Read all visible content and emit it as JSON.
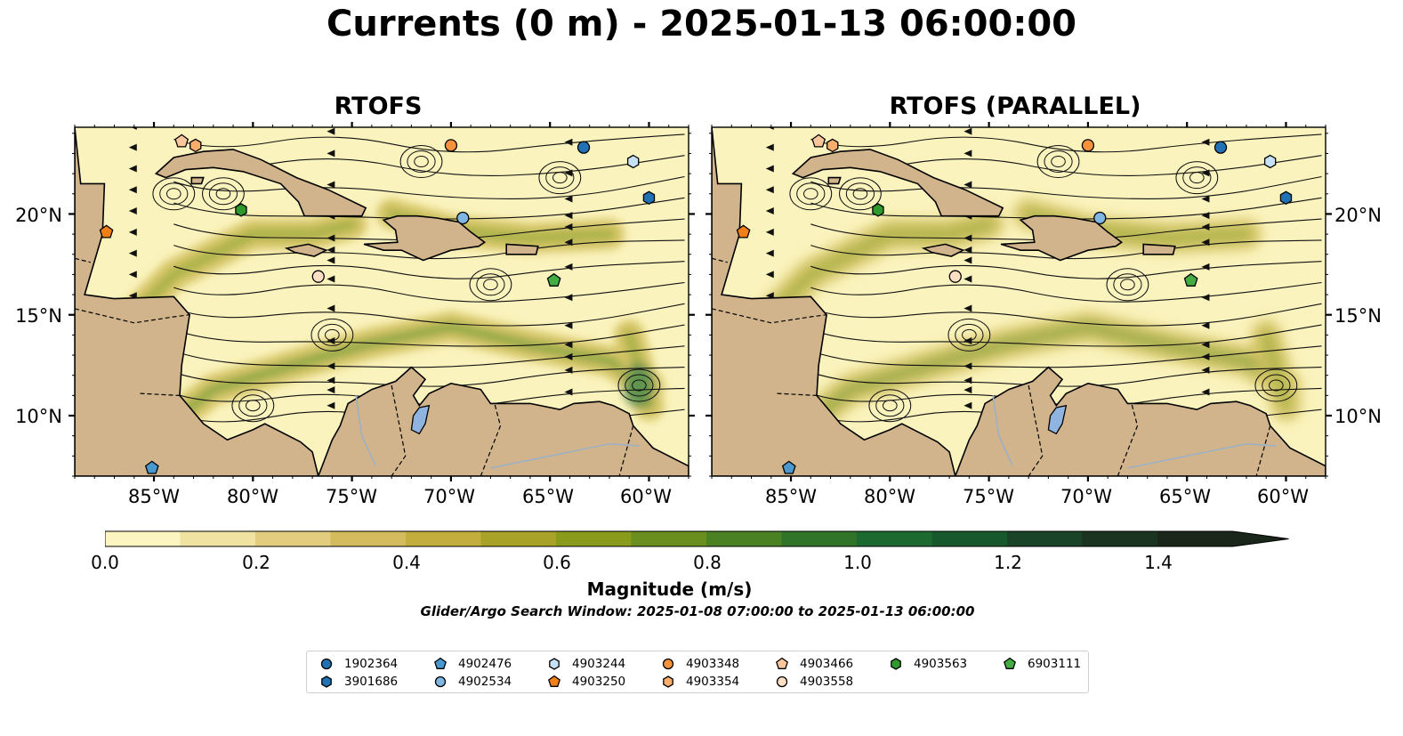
{
  "title": "Currents (0 m) - 2025-01-13 06:00:00",
  "panels": [
    {
      "title": "RTOFS"
    },
    {
      "title": "RTOFS (PARALLEL)"
    }
  ],
  "map": {
    "lon_range": [
      -89,
      -58
    ],
    "lat_range": [
      7,
      24.3
    ],
    "lat_ticks": [
      "20°N",
      "15°N",
      "10°N"
    ],
    "lon_ticks": [
      "85°W",
      "80°W",
      "75°W",
      "70°W",
      "65°W",
      "60°W"
    ],
    "land_color": "#d2b48c",
    "lake_color": "#8fb4e0",
    "ocean_low_color": "#fbf3bd"
  },
  "colorbar": {
    "label": "Magnitude (m/s)",
    "ticks": [
      "0.0",
      "0.2",
      "0.4",
      "0.6",
      "0.8",
      "1.0",
      "1.2",
      "1.4"
    ],
    "range": [
      0,
      1.5
    ],
    "colors": [
      "#fcf5c1",
      "#f0e2a0",
      "#e2cd7f",
      "#d4bb5e",
      "#c3ad3c",
      "#a8a228",
      "#8a9b1c",
      "#6a8f1f",
      "#4a8223",
      "#2f7429",
      "#1c6a30",
      "#17582d",
      "#1a4428",
      "#1b3422",
      "#1b261b"
    ]
  },
  "search_window": "Glider/Argo Search Window: 2025-01-08 07:00:00 to 2025-01-13 06:00:00",
  "floats": [
    {
      "id": "1902364",
      "marker": "circle",
      "color": "#2171b5"
    },
    {
      "id": "3901686",
      "marker": "hexagon",
      "color": "#2171b5"
    },
    {
      "id": "4902476",
      "marker": "pentagon",
      "color": "#4a98d0"
    },
    {
      "id": "4902534",
      "marker": "circle",
      "color": "#7fb6e2"
    },
    {
      "id": "4903244",
      "marker": "hexagon",
      "color": "#c6e0f5"
    },
    {
      "id": "4903250",
      "marker": "pentagon",
      "color": "#f07f16"
    },
    {
      "id": "4903348",
      "marker": "circle",
      "color": "#f7923c"
    },
    {
      "id": "4903354",
      "marker": "hexagon",
      "color": "#f9ae6c"
    },
    {
      "id": "4903466",
      "marker": "pentagon",
      "color": "#fbc69c"
    },
    {
      "id": "4903558",
      "marker": "circle",
      "color": "#fde0c4"
    },
    {
      "id": "4903563",
      "marker": "hexagon",
      "color": "#2e9a2e"
    },
    {
      "id": "6903111",
      "marker": "pentagon",
      "color": "#43ac43"
    }
  ],
  "float_positions": [
    {
      "id": "1902364",
      "lon": -63.3,
      "lat": 23.3
    },
    {
      "id": "3901686",
      "lon": -60.0,
      "lat": 20.8
    },
    {
      "id": "4902476",
      "lon": -85.1,
      "lat": 7.4
    },
    {
      "id": "4902534",
      "lon": -69.4,
      "lat": 19.8
    },
    {
      "id": "4903244",
      "lon": -60.8,
      "lat": 22.6
    },
    {
      "id": "4903250",
      "lon": -87.4,
      "lat": 19.1
    },
    {
      "id": "4903348",
      "lon": -70.0,
      "lat": 23.4
    },
    {
      "id": "4903354",
      "lon": -82.9,
      "lat": 23.4
    },
    {
      "id": "4903466",
      "lon": -83.6,
      "lat": 23.6
    },
    {
      "id": "4903558",
      "lon": -76.7,
      "lat": 16.9
    },
    {
      "id": "4903563",
      "lon": -80.6,
      "lat": 20.2
    },
    {
      "id": "6903111",
      "lon": -64.8,
      "lat": 16.7
    }
  ]
}
